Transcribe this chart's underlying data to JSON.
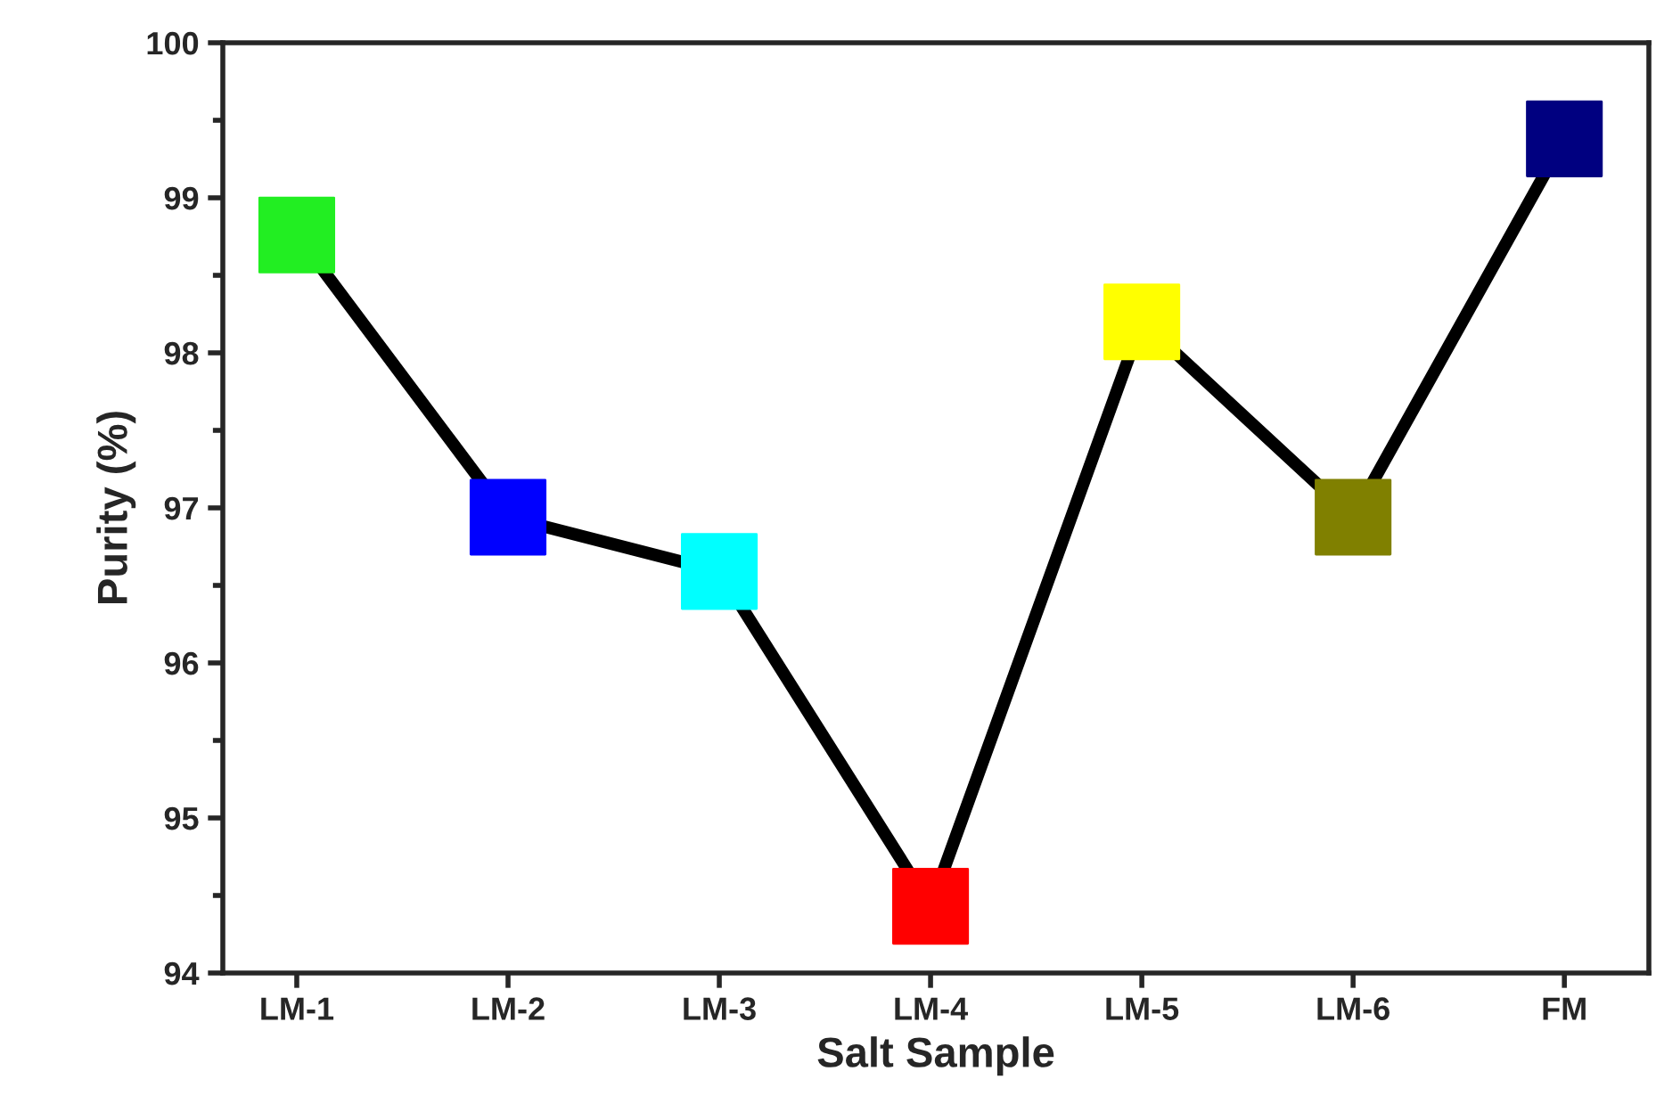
{
  "chart_data": {
    "type": "line",
    "xlabel": "Salt Sample",
    "ylabel": "Purity (%)",
    "categories": [
      "LM-1",
      "LM-2",
      "LM-3",
      "LM-4",
      "LM-5",
      "LM-6",
      "FM"
    ],
    "series": [
      {
        "color": "#000000",
        "values": [
          98.76,
          96.94,
          96.59,
          94.43,
          98.2,
          96.94,
          99.38
        ],
        "colors": [
          "#22ee22",
          "#0000ff",
          "#00ffff",
          "#ff0000",
          "#ffff00",
          "#808000",
          "#000080"
        ]
      }
    ],
    "marker": "square",
    "line_style": "solid",
    "grid": false,
    "ylim": [
      94,
      100
    ],
    "yticks": [
      94,
      95,
      96,
      97,
      98,
      99,
      100
    ]
  }
}
